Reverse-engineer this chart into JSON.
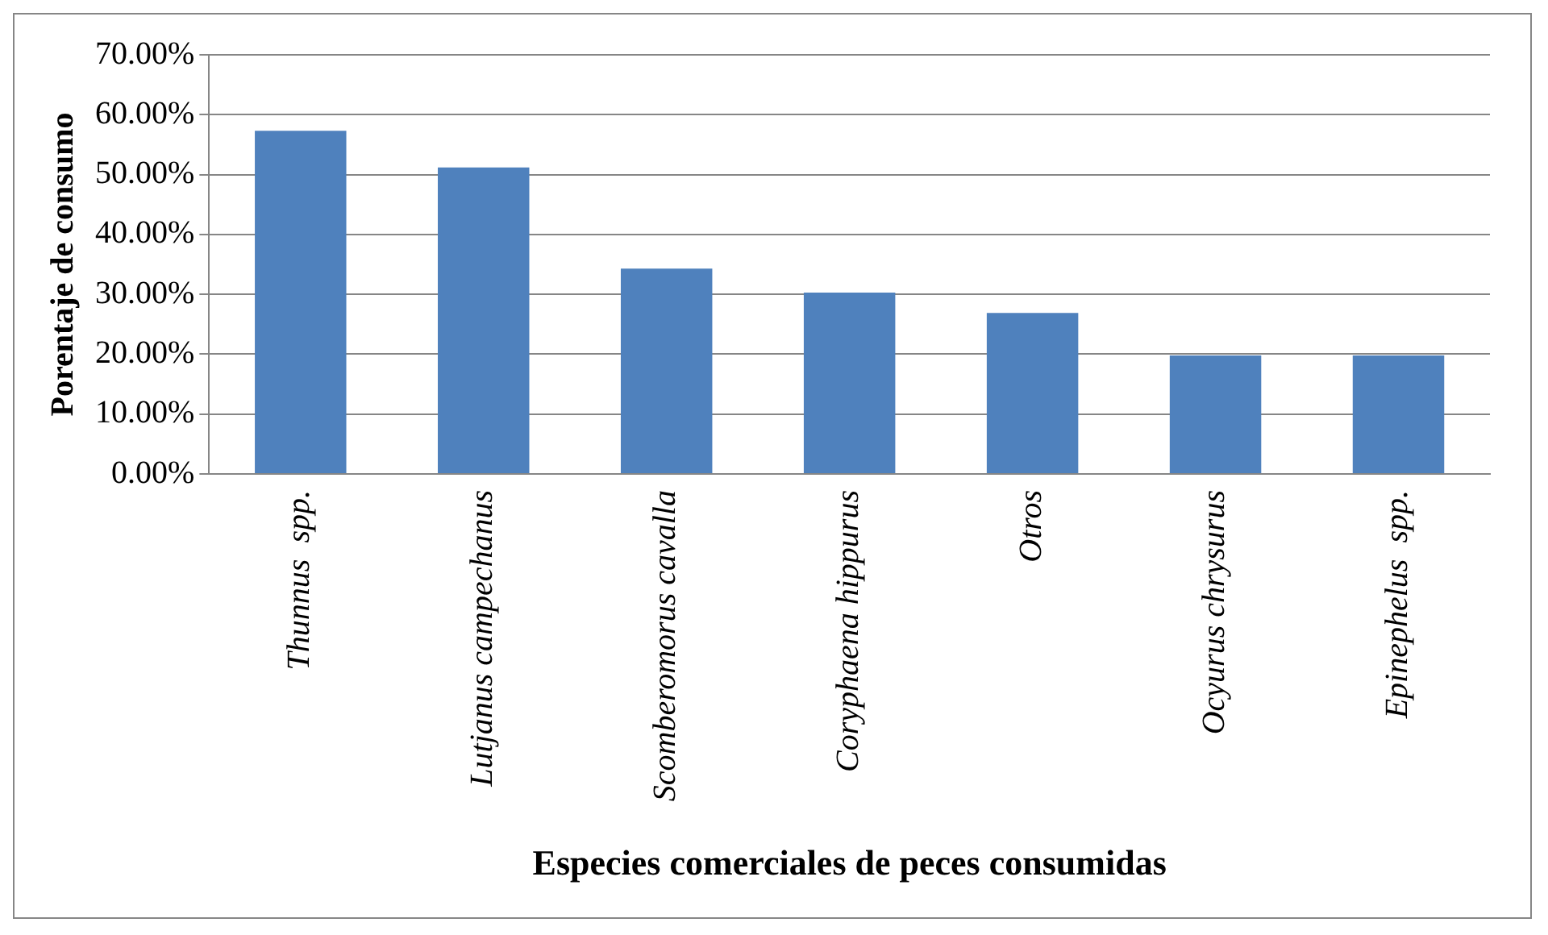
{
  "chart_data": {
    "type": "bar",
    "xlabel": "Especies comerciales de peces consumidas",
    "ylabel": "Porentaje de consumo",
    "categories": [
      "Thunnus  spp.",
      "Lutjanus campechanus",
      "Scomberomorus cavalla",
      "Coryphaena hippurus",
      "Otros",
      "Ocyurus chrysurus",
      "Epinephelus  spp."
    ],
    "values": [
      57.3,
      51.2,
      34.3,
      30.3,
      26.9,
      19.8,
      19.8
    ],
    "color": "#4f81bd",
    "ylim": [
      0,
      70
    ],
    "yticks": [
      {
        "value": 0,
        "label": "0.00%"
      },
      {
        "value": 10,
        "label": "10.00%"
      },
      {
        "value": 20,
        "label": "20.00%"
      },
      {
        "value": 30,
        "label": "30.00%"
      },
      {
        "value": 40,
        "label": "40.00%"
      },
      {
        "value": 50,
        "label": "50.00%"
      },
      {
        "value": 60,
        "label": "60.00%"
      },
      {
        "value": 70,
        "label": "70.00%"
      }
    ],
    "grid": "y",
    "legend": false
  }
}
